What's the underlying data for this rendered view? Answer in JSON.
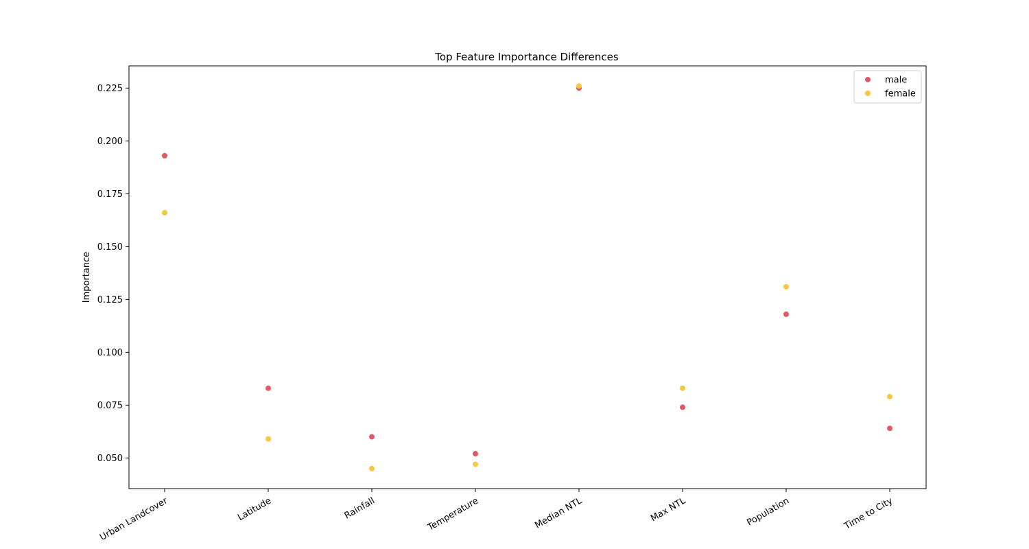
{
  "chart_data": {
    "type": "scatter",
    "title": "Top Feature Importance Differences",
    "xlabel": "",
    "ylabel": "Importance",
    "categories": [
      "Urban Landcover",
      "Latitude",
      "Rainfall",
      "Temperature",
      "Median NTL",
      "Max NTL",
      "Population",
      "Time to City"
    ],
    "series": [
      {
        "name": "male",
        "color": "#e05a63",
        "values": [
          0.193,
          0.083,
          0.06,
          0.052,
          0.225,
          0.074,
          0.118,
          0.064
        ]
      },
      {
        "name": "female",
        "color": "#f5c842",
        "values": [
          0.166,
          0.059,
          0.045,
          0.047,
          0.226,
          0.083,
          0.131,
          0.079
        ]
      }
    ],
    "ylim": [
      0.0355,
      0.2355
    ],
    "yticks": [
      0.05,
      0.075,
      0.1,
      0.125,
      0.15,
      0.175,
      0.2,
      0.225
    ],
    "ytick_labels": [
      "0.050",
      "0.075",
      "0.100",
      "0.125",
      "0.150",
      "0.175",
      "0.200",
      "0.225"
    ],
    "grid": false,
    "legend_position": "top-right"
  }
}
